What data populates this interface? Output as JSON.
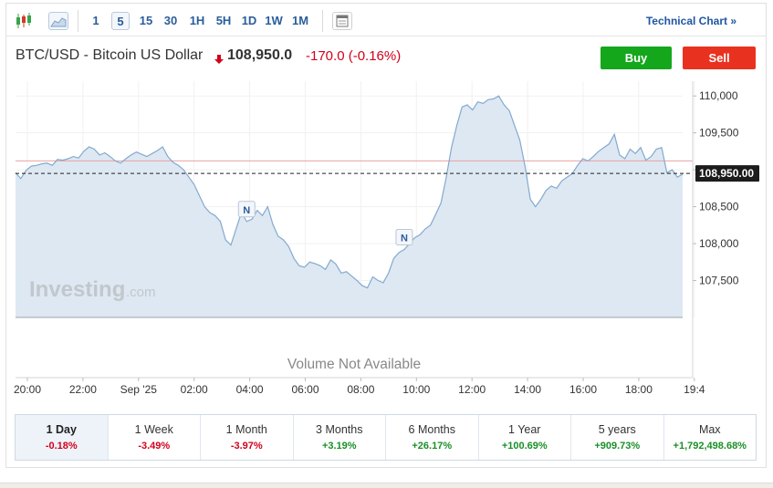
{
  "toolbar": {
    "candles_icon": "candlestick-icon",
    "area_icon": "area-chart-icon",
    "intervals": [
      "1",
      "5",
      "15",
      "30",
      "1H",
      "5H",
      "1D",
      "1W",
      "1M"
    ],
    "active_interval": "5",
    "calendar_icon": "calendar-icon",
    "technical_link": "Technical Chart »"
  },
  "header": {
    "instrument": "BTC/USD - Bitcoin US Dollar",
    "last_price": "108,950.0",
    "change": "-170.0",
    "change_pct": "(-0.16%)",
    "buy_label": "Buy",
    "sell_label": "Sell"
  },
  "chart_data": {
    "type": "area",
    "x_ticks": [
      "20:00",
      "22:00",
      "Sep '25",
      "02:00",
      "04:00",
      "06:00",
      "08:00",
      "10:00",
      "12:00",
      "14:00",
      "16:00",
      "18:00",
      "19:4"
    ],
    "y_ticks": [
      "110,000",
      "109,500",
      "109,000",
      "108,500",
      "108,000",
      "107,500"
    ],
    "ylim": [
      107000,
      110200
    ],
    "current_price_label": "108,950.00",
    "current_price": 108950,
    "previous_close": 109120,
    "volume_text": "Volume Not Available",
    "watermark_brand": "Investing",
    "watermark_suffix": ".com",
    "news_markers": [
      {
        "label": "N",
        "x_index": 44
      },
      {
        "label": "N",
        "x_index": 74
      }
    ],
    "series": [
      {
        "values": [
          108960,
          108880,
          108990,
          109050,
          109060,
          109080,
          109090,
          109060,
          109140,
          109130,
          109150,
          109180,
          109160,
          109250,
          109310,
          109280,
          109200,
          109230,
          109180,
          109120,
          109090,
          109150,
          109200,
          109240,
          109210,
          109180,
          109220,
          109260,
          109310,
          109180,
          109100,
          109060,
          109000,
          108900,
          108800,
          108650,
          108500,
          108420,
          108380,
          108300,
          108050,
          107980,
          108200,
          108420,
          108300,
          108330,
          108450,
          108380,
          108500,
          108260,
          108100,
          108050,
          107960,
          107800,
          107700,
          107680,
          107750,
          107730,
          107700,
          107650,
          107780,
          107720,
          107600,
          107620,
          107560,
          107500,
          107430,
          107400,
          107550,
          107500,
          107470,
          107600,
          107800,
          107880,
          107920,
          108000,
          108080,
          108120,
          108200,
          108250,
          108400,
          108550,
          108900,
          109300,
          109600,
          109850,
          109880,
          109810,
          109920,
          109900,
          109950,
          109960,
          110000,
          109880,
          109800,
          109600,
          109400,
          109050,
          108600,
          108500,
          108600,
          108720,
          108780,
          108750,
          108850,
          108900,
          108950,
          109060,
          109150,
          109120,
          109180,
          109250,
          109300,
          109350,
          109480,
          109200,
          109150,
          109280,
          109220,
          109300,
          109130,
          109180,
          109280,
          109300,
          108960,
          109000,
          108900,
          108940
        ]
      }
    ]
  },
  "periods": [
    {
      "label": "1 Day",
      "value": "-0.18%",
      "dir": "neg",
      "active": true
    },
    {
      "label": "1 Week",
      "value": "-3.49%",
      "dir": "neg"
    },
    {
      "label": "1 Month",
      "value": "-3.97%",
      "dir": "neg"
    },
    {
      "label": "3 Months",
      "value": "+3.19%",
      "dir": "pos"
    },
    {
      "label": "6 Months",
      "value": "+26.17%",
      "dir": "pos"
    },
    {
      "label": "1 Year",
      "value": "+100.69%",
      "dir": "pos"
    },
    {
      "label": "5 years",
      "value": "+909.73%",
      "dir": "pos"
    },
    {
      "label": "Max",
      "value": "+1,792,498.68%",
      "dir": "pos"
    }
  ],
  "colors": {
    "line": "#84a9cf",
    "fill": "#dde8f2",
    "buy": "#14a71c",
    "sell": "#e8321f",
    "prev_close_line": "#e8a2a2"
  }
}
